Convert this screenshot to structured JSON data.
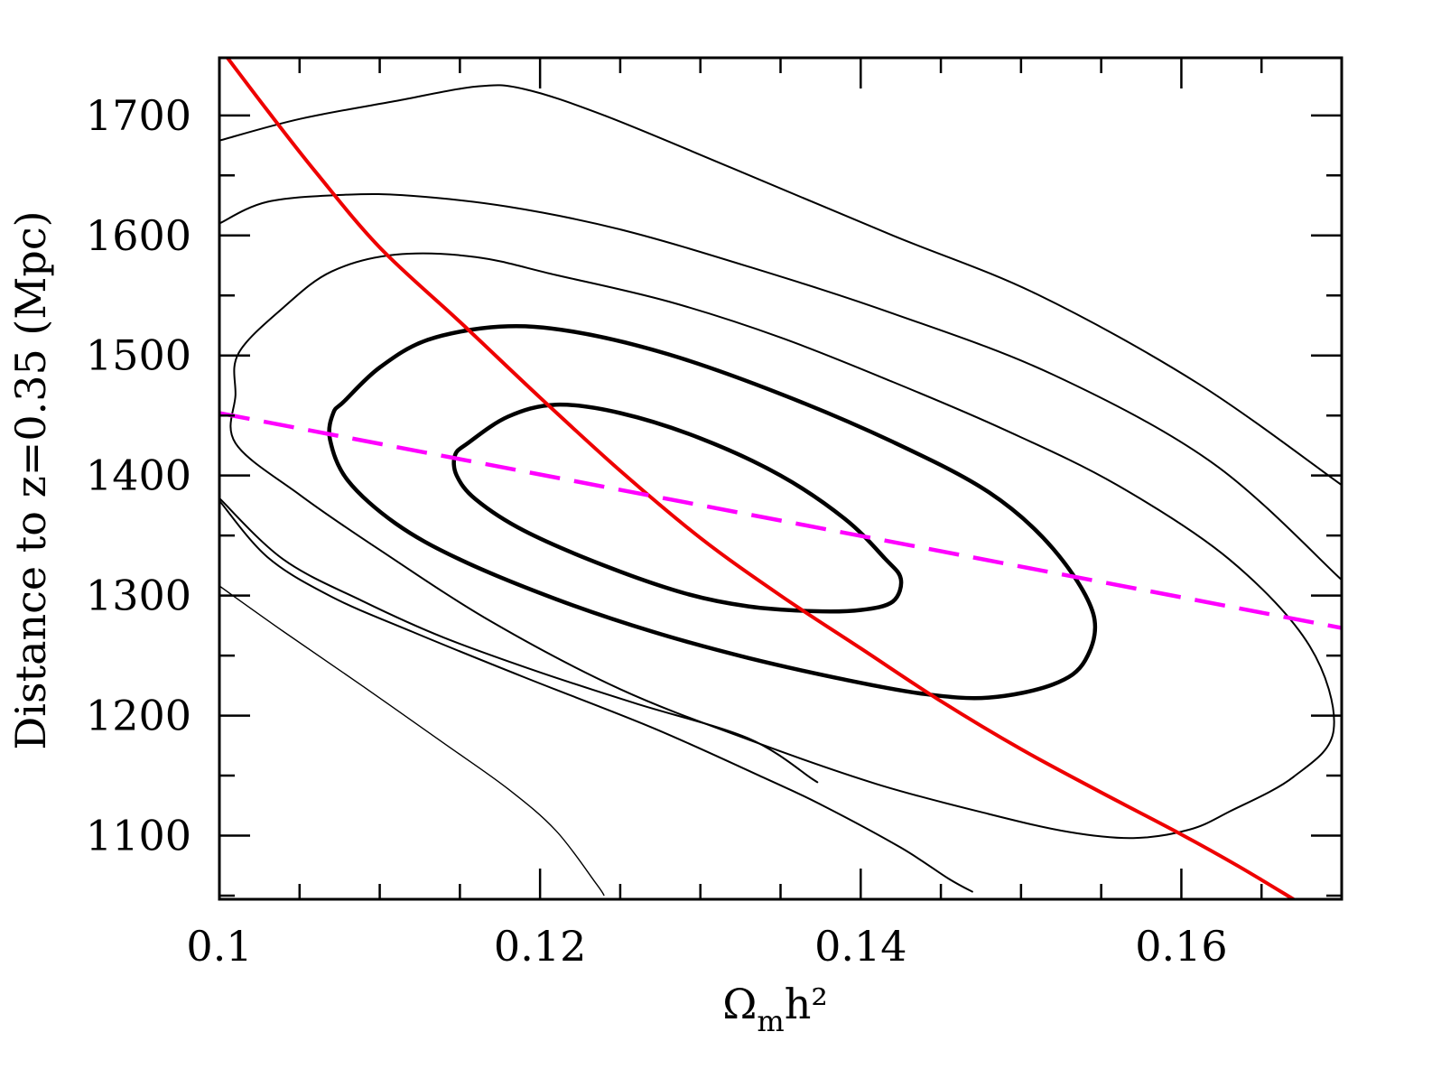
{
  "chart_data": {
    "type": "line",
    "title": "",
    "xlabel": "Ω",
    "xlabel_sub": "m",
    "xlabel_tail": "h²",
    "ylabel": "Distance to z=0.35 (Mpc)",
    "xlim": [
      0.1,
      0.17
    ],
    "ylim": [
      1047,
      1748
    ],
    "x_ticks": [
      0.1,
      0.12,
      0.14,
      0.16
    ],
    "x_tick_labels": [
      "0.1",
      "0.12",
      "0.14",
      "0.16"
    ],
    "x_minor_step": 0.005,
    "y_ticks": [
      1100,
      1200,
      1300,
      1400,
      1500,
      1600,
      1700
    ],
    "y_tick_labels": [
      "1100",
      "1200",
      "1300",
      "1400",
      "1500",
      "1600",
      "1700"
    ],
    "y_minor_step": 50,
    "grid": false,
    "legend": "none",
    "colors": {
      "red_line": "#ee0000",
      "dashed_line": "#ff00ff",
      "contours": "#000000"
    },
    "series": [
      {
        "kind": "contour-thick",
        "closed": true,
        "points": [
          [
            0.1155,
            1427
          ],
          [
            0.118,
            1449
          ],
          [
            0.121,
            1459
          ],
          [
            0.125,
            1452
          ],
          [
            0.13,
            1431
          ],
          [
            0.135,
            1400
          ],
          [
            0.139,
            1364
          ],
          [
            0.1415,
            1331
          ],
          [
            0.1425,
            1314
          ],
          [
            0.142,
            1295
          ],
          [
            0.14,
            1288
          ],
          [
            0.137,
            1287
          ],
          [
            0.133,
            1291
          ],
          [
            0.129,
            1302
          ],
          [
            0.124,
            1325
          ],
          [
            0.119,
            1354
          ],
          [
            0.116,
            1380
          ],
          [
            0.1148,
            1400
          ],
          [
            0.1147,
            1417
          ]
        ]
      },
      {
        "kind": "contour-thick",
        "closed": true,
        "points": [
          [
            0.1078,
            1462
          ],
          [
            0.11,
            1490
          ],
          [
            0.113,
            1513
          ],
          [
            0.1175,
            1524
          ],
          [
            0.122,
            1520
          ],
          [
            0.128,
            1501
          ],
          [
            0.135,
            1468
          ],
          [
            0.142,
            1428
          ],
          [
            0.148,
            1386
          ],
          [
            0.152,
            1339
          ],
          [
            0.1545,
            1285
          ],
          [
            0.154,
            1246
          ],
          [
            0.152,
            1226
          ],
          [
            0.148,
            1215
          ],
          [
            0.144,
            1218
          ],
          [
            0.139,
            1230
          ],
          [
            0.133,
            1248
          ],
          [
            0.127,
            1270
          ],
          [
            0.121,
            1297
          ],
          [
            0.115,
            1330
          ],
          [
            0.111,
            1360
          ],
          [
            0.108,
            1396
          ],
          [
            0.1069,
            1430
          ],
          [
            0.1071,
            1452
          ]
        ]
      },
      {
        "kind": "contour-thin",
        "closed": true,
        "points": [
          [
            0.1012,
            1502
          ],
          [
            0.104,
            1540
          ],
          [
            0.107,
            1570
          ],
          [
            0.111,
            1584
          ],
          [
            0.116,
            1582
          ],
          [
            0.121,
            1567
          ],
          [
            0.128,
            1545
          ],
          [
            0.135,
            1515
          ],
          [
            0.142,
            1478
          ],
          [
            0.149,
            1438
          ],
          [
            0.156,
            1392
          ],
          [
            0.163,
            1330
          ],
          [
            0.168,
            1258
          ],
          [
            0.1695,
            1188
          ],
          [
            0.167,
            1149
          ],
          [
            0.163,
            1120
          ],
          [
            0.1605,
            1105
          ],
          [
            0.157,
            1098
          ],
          [
            0.153,
            1103
          ],
          [
            0.148,
            1118
          ],
          [
            0.141,
            1143
          ],
          [
            0.133,
            1180
          ],
          [
            0.125,
            1222
          ],
          [
            0.117,
            1278
          ],
          [
            0.11,
            1338
          ],
          [
            0.105,
            1384
          ],
          [
            0.101,
            1427
          ],
          [
            0.101,
            1467
          ]
        ]
      },
      {
        "kind": "contour-thin",
        "closed": false,
        "points": [
          [
            0.1,
            1610
          ],
          [
            0.103,
            1628
          ],
          [
            0.108,
            1634
          ],
          [
            0.112,
            1633
          ],
          [
            0.118,
            1624
          ],
          [
            0.125,
            1605
          ],
          [
            0.133,
            1574
          ],
          [
            0.142,
            1535
          ],
          [
            0.152,
            1484
          ],
          [
            0.162,
            1410
          ],
          [
            0.17,
            1313
          ]
        ]
      },
      {
        "kind": "contour-thin",
        "closed": false,
        "points": [
          [
            0.1,
            1679
          ],
          [
            0.105,
            1697
          ],
          [
            0.111,
            1712
          ],
          [
            0.116,
            1724
          ],
          [
            0.119,
            1722
          ],
          [
            0.124,
            1700
          ],
          [
            0.132,
            1656
          ],
          [
            0.142,
            1600
          ],
          [
            0.151,
            1551
          ],
          [
            0.161,
            1477
          ],
          [
            0.17,
            1392
          ]
        ]
      },
      {
        "kind": "contour-thin",
        "closed": false,
        "points": [
          [
            0.1,
            1381
          ],
          [
            0.104,
            1330
          ],
          [
            0.109,
            1295
          ],
          [
            0.114,
            1265
          ],
          [
            0.12,
            1236
          ],
          [
            0.126,
            1210
          ],
          [
            0.133,
            1181
          ],
          [
            0.137,
            1147
          ],
          [
            0.137,
            1147
          ]
        ]
      },
      {
        "kind": "contour-thin",
        "closed": false,
        "points": [
          [
            0.1,
            1379
          ],
          [
            0.103,
            1332
          ],
          [
            0.107,
            1299
          ],
          [
            0.112,
            1270
          ],
          [
            0.119,
            1232
          ],
          [
            0.127,
            1190
          ],
          [
            0.134,
            1148
          ],
          [
            0.1375,
            1126
          ],
          [
            0.1425,
            1090
          ],
          [
            0.1455,
            1064
          ],
          [
            0.147,
            1053
          ]
        ]
      },
      {
        "kind": "contour-thinner",
        "closed": false,
        "points": [
          [
            0.1,
            1308
          ],
          [
            0.104,
            1270
          ],
          [
            0.109,
            1224
          ],
          [
            0.114,
            1177
          ],
          [
            0.118,
            1139
          ],
          [
            0.121,
            1104
          ],
          [
            0.1235,
            1060
          ],
          [
            0.124,
            1050
          ]
        ]
      },
      {
        "kind": "red-line",
        "closed": false,
        "points": [
          [
            0.1005,
            1748
          ],
          [
            0.103,
            1704
          ],
          [
            0.106,
            1653
          ],
          [
            0.11,
            1590
          ],
          [
            0.115,
            1528
          ],
          [
            0.12,
            1465
          ],
          [
            0.125,
            1404
          ],
          [
            0.13,
            1348
          ],
          [
            0.135,
            1300
          ],
          [
            0.14,
            1256
          ],
          [
            0.145,
            1212
          ],
          [
            0.15,
            1172
          ],
          [
            0.155,
            1136
          ],
          [
            0.16,
            1101
          ],
          [
            0.1635,
            1075
          ],
          [
            0.167,
            1047
          ]
        ]
      },
      {
        "kind": "magenta-dashed",
        "closed": false,
        "points": [
          [
            0.1,
            1452
          ],
          [
            0.17,
            1273
          ]
        ]
      }
    ]
  }
}
